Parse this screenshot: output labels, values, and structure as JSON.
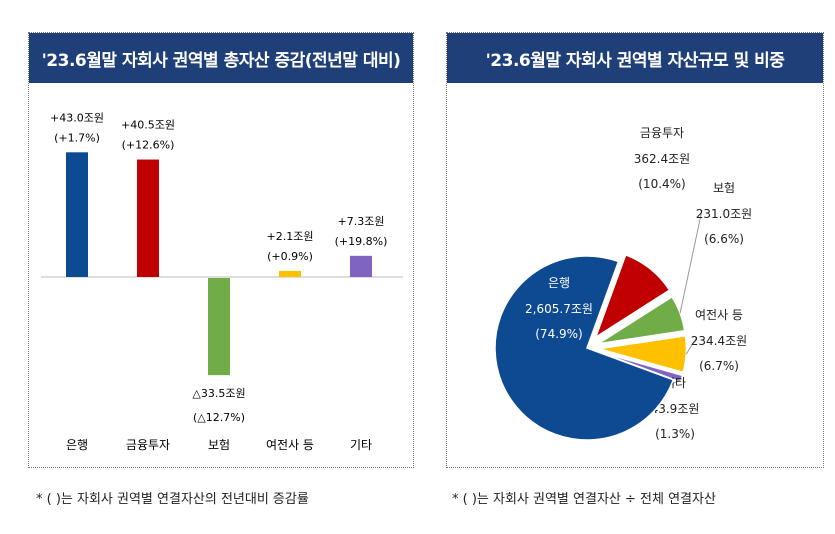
{
  "chart_data": [
    {
      "type": "bar",
      "title": "'23.6월말 자회사 권역별 총자산 증감(전년말 대비)",
      "categories": [
        "은행",
        "금융투자",
        "보험",
        "여전사 등",
        "기타"
      ],
      "values": [
        43.0,
        40.5,
        -33.5,
        2.1,
        7.3
      ],
      "value_labels": [
        "+43.0조원",
        "+40.5조원",
        "△33.5조원",
        "+2.1조원",
        "+7.3조원"
      ],
      "pct_labels": [
        "(+1.7%)",
        "(+12.6%)",
        "(△12.7%)",
        "(+0.9%)",
        "(+19.8%)"
      ],
      "unit": "조원",
      "colors": [
        "#0e4a92",
        "#c00000",
        "#70ad47",
        "#ffc000",
        "#8064c2"
      ],
      "grid": false,
      "legend": "none"
    },
    {
      "type": "pie",
      "title": "'23.6월말 자회사 권역별 자산규모 및 비중",
      "categories": [
        "금융투자",
        "보험",
        "여전사 등",
        "기타",
        "은행"
      ],
      "values": [
        362.4,
        231.0,
        234.4,
        43.9,
        2605.7
      ],
      "percents": [
        10.4,
        6.6,
        6.7,
        1.3,
        74.9
      ],
      "value_labels": [
        "362.4조원",
        "231.0조원",
        "234.4조원",
        "43.9조원",
        "2,605.7조원"
      ],
      "pct_labels": [
        "(10.4%)",
        "(6.6%)",
        "(6.7%)",
        "(1.3%)",
        "(74.9%)"
      ],
      "exploded": true,
      "colors": [
        "#c00000",
        "#70ad47",
        "#ffc000",
        "#8064c2",
        "#0e4a92"
      ],
      "legend": "none"
    }
  ],
  "notes": {
    "left": "* (  )는 자회사 권역별 연결자산의 전년대비 증감률",
    "right": "* (  )는 자회사 권역별 연결자산 ÷ 전체 연결자산"
  }
}
